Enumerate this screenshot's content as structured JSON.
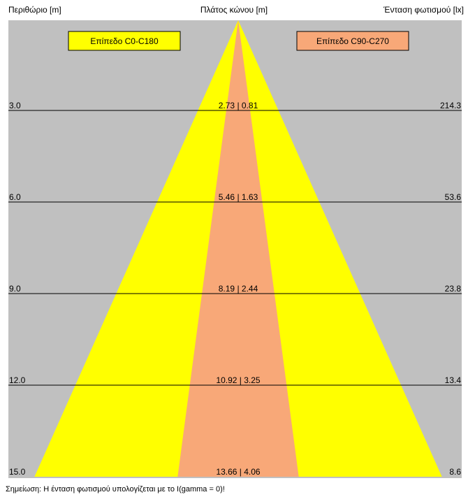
{
  "header": {
    "left_label": "Περιθώριο [m]",
    "center_label": "Πλάτος κώνου [m]",
    "right_label": "Ένταση φωτισμού [lx]"
  },
  "legend": {
    "c0_label": "Επίπεδο C0-C180",
    "c90_label": "Επίπεδο C90-C270"
  },
  "colors": {
    "background": "#c0c0c0",
    "c0_fill": "#ffff00",
    "c90_fill": "#f8a878",
    "line": "#000000"
  },
  "chart_data": {
    "type": "cone_diagram",
    "distance_unit": "m",
    "illuminance_unit": "lx",
    "max_distance": 15.0,
    "rows": [
      {
        "distance": 3.0,
        "distance_label": "3.0",
        "width_c0": 2.73,
        "width_c90": 0.81,
        "width_label": "2.73 | 0.81",
        "illuminance": 214.3,
        "illuminance_label": "214.3"
      },
      {
        "distance": 6.0,
        "distance_label": "6.0",
        "width_c0": 5.46,
        "width_c90": 1.63,
        "width_label": "5.46 | 1.63",
        "illuminance": 53.6,
        "illuminance_label": "53.6"
      },
      {
        "distance": 9.0,
        "distance_label": "9.0",
        "width_c0": 8.19,
        "width_c90": 2.44,
        "width_label": "8.19 | 2.44",
        "illuminance": 23.8,
        "illuminance_label": "23.8"
      },
      {
        "distance": 12.0,
        "distance_label": "12.0",
        "width_c0": 10.92,
        "width_c90": 3.25,
        "width_label": "10.92 | 3.25",
        "illuminance": 13.4,
        "illuminance_label": "13.4"
      },
      {
        "distance": 15.0,
        "distance_label": "15.0",
        "width_c0": 13.66,
        "width_c90": 4.06,
        "width_label": "13.66 | 4.06",
        "illuminance": 8.6,
        "illuminance_label": "8.6"
      }
    ]
  },
  "note": "Σημείωση: Η ένταση φωτισμού υπολογίζεται με το I(gamma = 0)!"
}
